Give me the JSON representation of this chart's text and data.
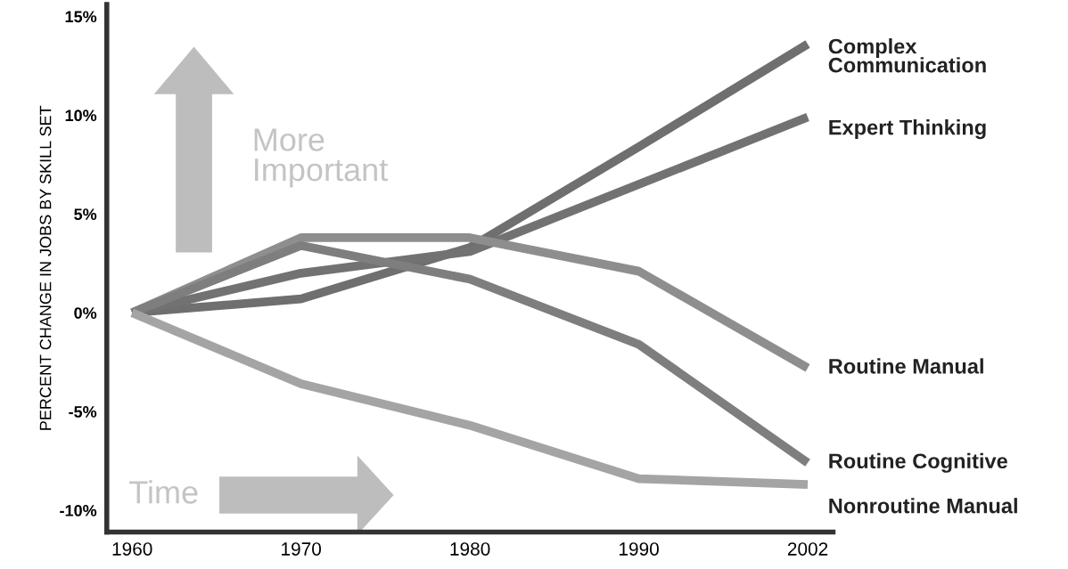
{
  "chart_data": {
    "type": "line",
    "ylabel": "PERCENT CHANGE IN JOBS BY SKILL SET",
    "categories": [
      "1960",
      "1970",
      "1980",
      "1990",
      "2002"
    ],
    "series": [
      {
        "name": "Complex Communication",
        "color": "#6f6f6f",
        "values": [
          0,
          0.7,
          3.3,
          8.4,
          13.6
        ]
      },
      {
        "name": "Expert Thinking",
        "color": "#727272",
        "values": [
          0,
          2.0,
          3.1,
          6.5,
          9.9
        ]
      },
      {
        "name": "Routine Manual",
        "color": "#8e8e8e",
        "values": [
          0,
          3.8,
          3.8,
          2.1,
          -2.8
        ]
      },
      {
        "name": "Routine Cognitive",
        "color": "#7e7e7e",
        "values": [
          0,
          3.4,
          1.7,
          -1.6,
          -7.6
        ]
      },
      {
        "name": "Nonroutine Manual",
        "color": "#a4a4a4",
        "values": [
          0,
          -3.6,
          -5.7,
          -8.4,
          -8.7
        ]
      }
    ],
    "ylim": [
      -11.1,
      15.6
    ],
    "yticks": [
      {
        "value": 15,
        "label": "15%"
      },
      {
        "value": 10,
        "label": "10%"
      },
      {
        "value": 5,
        "label": "5%"
      },
      {
        "value": 0,
        "label": "0%"
      },
      {
        "value": -5,
        "label": "-5%"
      },
      {
        "value": -10,
        "label": "-10%"
      }
    ],
    "annotations": [
      "More Important",
      "Time"
    ],
    "grid": false,
    "legend": false,
    "marker": "none",
    "line_style": "solid"
  }
}
